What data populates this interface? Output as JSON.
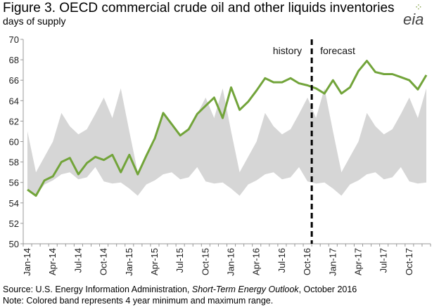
{
  "header": {
    "title": "Figure 3. OECD commercial crude oil and other liquids inventories",
    "subtitle": "days of supply",
    "logo_text": "eia"
  },
  "footer": {
    "source_prefix": "Source: U.S. Energy Information Administration, ",
    "source_italic": "Short-Term Energy Outlook",
    "source_suffix": ", October 2016",
    "note": "Note: Colored band represents 4 year minimum and maximum range."
  },
  "chart_data": {
    "type": "line",
    "title": "Figure 3. OECD commercial crude oil and other liquids inventories",
    "ylabel": "days of supply",
    "ylim": [
      50,
      70
    ],
    "yticks": [
      50,
      52,
      54,
      56,
      58,
      60,
      62,
      64,
      66,
      68,
      70
    ],
    "x_tick_labels": [
      "Jan-14",
      "Apr-14",
      "Jul-14",
      "Oct-14",
      "Jan-15",
      "Apr-15",
      "Jul-15",
      "Oct-15",
      "Jan-16",
      "Apr-16",
      "Jul-16",
      "Oct-16",
      "Jan-17",
      "Apr-17",
      "Jul-17",
      "Oct-17"
    ],
    "x_tick_month_index": [
      0,
      3,
      6,
      9,
      12,
      15,
      18,
      21,
      24,
      27,
      30,
      33,
      36,
      39,
      42,
      45
    ],
    "n_months": 48,
    "grid": false,
    "legend": "none",
    "annotations": [
      {
        "text": "history",
        "side": "left of divider"
      },
      {
        "text": "forecast",
        "side": "right of divider"
      }
    ],
    "divider_month_index": 33.5,
    "colors": {
      "line": "#72a43a",
      "band": "#d6d6d6",
      "divider": "#000000"
    },
    "band_min_pattern": [
      55.4,
      54.7,
      55.8,
      56.2,
      56.8,
      57.0,
      56.3,
      56.5,
      57.5,
      56.1,
      55.9,
      56.0
    ],
    "band_max_pattern": [
      61.0,
      57.0,
      58.5,
      60.0,
      62.8,
      61.5,
      60.7,
      61.2,
      62.7,
      64.3,
      62.3,
      65.2
    ],
    "series": [
      {
        "name": "",
        "values": [
          55.3,
          54.7,
          56.2,
          56.6,
          58.0,
          58.4,
          56.8,
          57.9,
          58.5,
          58.2,
          58.7,
          57.0,
          58.7,
          56.8,
          58.6,
          60.3,
          62.8,
          61.7,
          60.6,
          61.2,
          62.7,
          63.5,
          64.3,
          62.3,
          65.3,
          63.1,
          63.9,
          65.0,
          66.2,
          65.8,
          65.8,
          66.2,
          65.7,
          65.5,
          65.2,
          64.7,
          66.0,
          64.7,
          65.3,
          66.9,
          67.9,
          66.8,
          66.6,
          66.6,
          66.3,
          66.0,
          65.1,
          66.5
        ]
      }
    ]
  }
}
